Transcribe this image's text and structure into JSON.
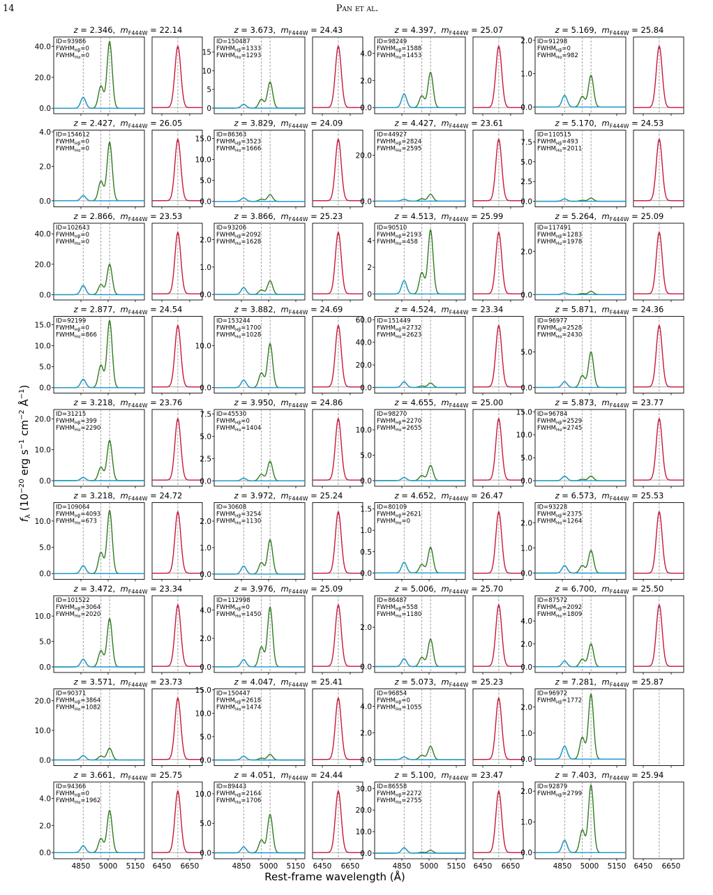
{
  "header": {
    "page": "14",
    "running_head": "Pan et al."
  },
  "figure": {
    "x_label": "Rest-frame wavelength (Å)",
    "y_label": [
      "f",
      "λ",
      " (10",
      "−20",
      " erg s",
      "−1",
      " cm",
      "−2",
      " Å",
      "−1",
      ")"
    ],
    "labels": {
      "z": "z",
      "eq": " = ",
      "sep": ",  ",
      "m": "m",
      "band": "F444W",
      "id": "ID=",
      "fwhm": "FWHM",
      "hb": "Hβ",
      "ha": "Hα",
      "eq2": "="
    },
    "xlim_left": [
      4700,
      5200
    ],
    "xlim_right": [
      6380,
      6740
    ],
    "xticks_left": [
      4850,
      5000,
      5150
    ],
    "xticks_right": [
      6450,
      6650
    ],
    "line_centers": [
      4862.7,
      4960.3,
      5008.2,
      6564.6
    ],
    "line_sigma": [
      14,
      14,
      14,
      21
    ],
    "doublet_ratio": 0.335,
    "colors": {
      "hb": "#1e9bd7",
      "oiii": "#2f7a1f",
      "ha": "#c8163a",
      "baseline": "#9a9a9a"
    },
    "panels": [
      {
        "z": "2.346",
        "m": "22.14",
        "id": "93986",
        "fwhm_hb": "0",
        "fwhm_ha": "0",
        "ylim": [
          -3.5,
          46
        ],
        "yticks": [
          {
            "value": 0,
            "label": "0.0"
          },
          {
            "value": 20,
            "label": "20.0"
          },
          {
            "value": 40,
            "label": "40.0"
          }
        ],
        "hb": 7,
        "oiii": 43,
        "ha": 60
      },
      {
        "z": "3.673",
        "m": "24.43",
        "id": "150487",
        "fwhm_hb": "1333",
        "fwhm_ha": "1293",
        "ylim": [
          -1.5,
          19
        ],
        "yticks": [
          0,
          5,
          10,
          15
        ],
        "hb": 1,
        "oiii": 7,
        "ha": 18
      },
      {
        "z": "4.397",
        "m": "25.07",
        "id": "98249",
        "fwhm_hb": "1588",
        "fwhm_ha": "1453",
        "ylim": [
          -0.45,
          5.2
        ],
        "yticks": [
          {
            "value": 0,
            "label": "0.0"
          },
          {
            "value": 2,
            "label": "2.0"
          },
          {
            "value": 4,
            "label": "4.0"
          }
        ],
        "hb": 1,
        "oiii": 2.6,
        "ha": 8
      },
      {
        "z": "5.169",
        "m": "25.84",
        "id": "91298",
        "fwhm_hb": "0",
        "fwhm_ha": "982",
        "ylim": [
          -0.2,
          2.1
        ],
        "yticks": [
          {
            "value": 0,
            "label": "0.0"
          },
          {
            "value": 1,
            "label": "1.0"
          },
          {
            "value": 2,
            "label": "2.0"
          }
        ],
        "hb": 0.35,
        "oiii": 0.95,
        "ha": 3
      },
      {
        "z": "2.427",
        "m": "26.05",
        "id": "154612",
        "fwhm_hb": "0",
        "fwhm_ha": "0",
        "ylim": [
          -0.35,
          4.1
        ],
        "yticks": [
          {
            "value": 0,
            "label": "0.0"
          },
          {
            "value": 2,
            "label": "2.0"
          },
          {
            "value": 4,
            "label": "4.0"
          }
        ],
        "hb": 0.3,
        "oiii": 3.4,
        "ha": 12
      },
      {
        "z": "3.829",
        "m": "24.09",
        "id": "86363",
        "fwhm_hb": "3523",
        "fwhm_ha": "1666",
        "ylim": [
          -1.3,
          17
        ],
        "yticks": [
          {
            "value": 0,
            "label": "0.0"
          },
          {
            "value": 5,
            "label": "5.0"
          },
          {
            "value": 10,
            "label": "10.0"
          },
          {
            "value": 15,
            "label": "15.0"
          }
        ],
        "hb": 0.8,
        "oiii": 1.6,
        "ha": 45
      },
      {
        "z": "4.427",
        "m": "23.61",
        "id": "44927",
        "fwhm_hb": "2824",
        "fwhm_ha": "2595",
        "ylim": [
          -2.5,
          31
        ],
        "yticks": [
          {
            "value": 0,
            "label": "0.0"
          },
          {
            "value": 20,
            "label": "20.0"
          }
        ],
        "hb": 0.8,
        "oiii": 3,
        "ha": 60
      },
      {
        "z": "5.170",
        "m": "24.53",
        "id": "110515",
        "fwhm_hb": "493",
        "fwhm_ha": "2011",
        "ylim": [
          -0.7,
          9
        ],
        "yticks": [
          {
            "value": 0,
            "label": "0.0"
          },
          {
            "value": 2.5,
            "label": "2.5"
          },
          {
            "value": 5,
            "label": "5.0"
          },
          {
            "value": 7.5,
            "label": "7.5"
          }
        ],
        "hb": 0.3,
        "oiii": 0.4,
        "ha": 25
      },
      {
        "z": "2.866",
        "m": "23.53",
        "id": "102643",
        "fwhm_hb": "0",
        "fwhm_ha": "0",
        "ylim": [
          -3.5,
          47
        ],
        "yticks": [
          {
            "value": 0,
            "label": "0.0"
          },
          {
            "value": 20,
            "label": "20.0"
          },
          {
            "value": 40,
            "label": "40.0"
          }
        ],
        "hb": 6,
        "oiii": 20,
        "ha": 100
      },
      {
        "z": "3.866",
        "m": "25.23",
        "id": "93206",
        "fwhm_hb": "2092",
        "fwhm_ha": "1628",
        "ylim": [
          -0.2,
          2.6
        ],
        "yticks": [
          {
            "value": 0,
            "label": "0.0"
          },
          {
            "value": 1,
            "label": "1.0"
          },
          {
            "value": 2,
            "label": "2.0"
          }
        ],
        "hb": 0.25,
        "oiii": 0.5,
        "ha": 6
      },
      {
        "z": "4.513",
        "m": "25.99",
        "id": "90510",
        "fwhm_hb": "2193",
        "fwhm_ha": "458",
        "ylim": [
          -0.45,
          5.3
        ],
        "yticks": [
          0,
          2,
          4
        ],
        "hb": 1,
        "oiii": 4.8,
        "ha": 12
      },
      {
        "z": "5.264",
        "m": "25.09",
        "id": "117491",
        "fwhm_hb": "1283",
        "fwhm_ha": "1978",
        "ylim": [
          -0.25,
          3.3
        ],
        "yticks": [
          {
            "value": 0,
            "label": "0.0"
          },
          {
            "value": 2,
            "label": "2.0"
          }
        ],
        "hb": 0.08,
        "oiii": 0.15,
        "ha": 6
      },
      {
        "z": "2.877",
        "m": "24.54",
        "id": "92199",
        "fwhm_hb": "0",
        "fwhm_ha": "866",
        "ylim": [
          -1.3,
          17
        ],
        "yticks": [
          {
            "value": 0,
            "label": "0.0"
          },
          {
            "value": 5,
            "label": "5.0"
          },
          {
            "value": 10,
            "label": "10.0"
          },
          {
            "value": 15,
            "label": "15.0"
          }
        ],
        "hb": 2,
        "oiii": 16,
        "ha": 40
      },
      {
        "z": "3.882",
        "m": "24.69",
        "id": "153244",
        "fwhm_hb": "1700",
        "fwhm_ha": "1028",
        "ylim": [
          -1.3,
          17
        ],
        "yticks": [
          {
            "value": 0,
            "label": "0.0"
          },
          {
            "value": 10,
            "label": "10.0"
          }
        ],
        "hb": 1.8,
        "oiii": 10.5,
        "ha": 30
      },
      {
        "z": "4.524",
        "m": "23.34",
        "id": "151449",
        "fwhm_hb": "2732",
        "fwhm_ha": "2623",
        "ylim": [
          -5,
          63
        ],
        "yticks": [
          {
            "value": 0,
            "label": "0.0"
          },
          {
            "value": 20,
            "label": "20.0"
          },
          {
            "value": 40,
            "label": "40.0"
          },
          {
            "value": 60,
            "label": "60.0"
          }
        ],
        "hb": 5,
        "oiii": 4,
        "ha": 150
      },
      {
        "z": "5.871",
        "m": "24.36",
        "id": "96977",
        "fwhm_hb": "2528",
        "fwhm_ha": "2430",
        "ylim": [
          -0.8,
          10
        ],
        "yticks": [
          {
            "value": 0,
            "label": "0.0"
          },
          {
            "value": 5,
            "label": "5.0"
          }
        ],
        "hb": 0.8,
        "oiii": 5,
        "ha": 20
      },
      {
        "z": "3.218",
        "m": "23.76",
        "id": "31215",
        "fwhm_hb": "399",
        "fwhm_ha": "2290",
        "ylim": [
          -1.8,
          23
        ],
        "yticks": [
          {
            "value": 0,
            "label": "0.0"
          },
          {
            "value": 10,
            "label": "10.0"
          },
          {
            "value": 20,
            "label": "20.0"
          }
        ],
        "hb": 1,
        "oiii": 13,
        "ha": 70
      },
      {
        "z": "3.950",
        "m": "24.86",
        "id": "45530",
        "fwhm_hb": "0",
        "fwhm_ha": "1404",
        "ylim": [
          -0.6,
          8
        ],
        "yticks": [
          {
            "value": 0,
            "label": "0.0"
          },
          {
            "value": 2.5,
            "label": "2.5"
          },
          {
            "value": 5,
            "label": "5.0"
          },
          {
            "value": 7.5,
            "label": "7.5"
          }
        ],
        "hb": 0.3,
        "oiii": 2.2,
        "ha": 15
      },
      {
        "z": "4.655",
        "m": "25.00",
        "id": "98270",
        "fwhm_hb": "2270",
        "fwhm_ha": "2655",
        "ylim": [
          -1.1,
          14
        ],
        "yticks": [
          {
            "value": 0,
            "label": "0.0"
          },
          {
            "value": 5,
            "label": "5.0"
          },
          {
            "value": 10,
            "label": "10.0"
          }
        ],
        "hb": 0.6,
        "oiii": 3,
        "ha": 25
      },
      {
        "z": "5.873",
        "m": "23.77",
        "id": "96784",
        "fwhm_hb": "2529",
        "fwhm_ha": "2745",
        "ylim": [
          -1.2,
          15.5
        ],
        "yticks": [
          {
            "value": 0,
            "label": "0.0"
          },
          {
            "value": 5,
            "label": "5.0"
          },
          {
            "value": 10,
            "label": "10.0"
          },
          {
            "value": 15,
            "label": "15.0"
          }
        ],
        "hb": 1,
        "oiii": 1,
        "ha": 30
      },
      {
        "z": "3.218",
        "m": "24.72",
        "id": "109064",
        "fwhm_hb": "4093",
        "fwhm_ha": "673",
        "ylim": [
          -1.1,
          13.5
        ],
        "yticks": [
          {
            "value": 0,
            "label": "0.0"
          },
          {
            "value": 5,
            "label": "5.0"
          },
          {
            "value": 10,
            "label": "10.0"
          }
        ],
        "hb": 1.5,
        "oiii": 12,
        "ha": 30
      },
      {
        "z": "3.972",
        "m": "25.24",
        "id": "30608",
        "fwhm_hb": "3254",
        "fwhm_ha": "1130",
        "ylim": [
          -0.2,
          2.7
        ],
        "yticks": [
          {
            "value": 0,
            "label": "0.0"
          },
          {
            "value": 1,
            "label": "1.0"
          },
          {
            "value": 2,
            "label": "2.0"
          }
        ],
        "hb": 0.3,
        "oiii": 1.3,
        "ha": 8
      },
      {
        "z": "4.652",
        "m": "26.47",
        "id": "80109",
        "fwhm_hb": "2621",
        "fwhm_ha": "0",
        "ylim": [
          -0.15,
          1.65
        ],
        "yticks": [
          {
            "value": 0,
            "label": "0.0"
          },
          {
            "value": 0.5,
            "label": "0.5"
          },
          {
            "value": 1,
            "label": "1.0"
          },
          {
            "value": 1.5,
            "label": "1.5"
          }
        ],
        "hb": 0.25,
        "oiii": 0.6,
        "ha": 1.8
      },
      {
        "z": "6.573",
        "m": "25.53",
        "id": "93228",
        "fwhm_hb": "2375",
        "fwhm_ha": "1264",
        "ylim": [
          -0.25,
          2.8
        ],
        "yticks": [
          {
            "value": 0,
            "label": "0.0"
          },
          {
            "value": 1,
            "label": "1.0"
          },
          {
            "value": 2,
            "label": "2.0"
          }
        ],
        "hb": 0.3,
        "oiii": 0.9,
        "ha": 6
      },
      {
        "z": "3.472",
        "m": "23.34",
        "id": "101522",
        "fwhm_hb": "3064",
        "fwhm_ha": "2020",
        "ylim": [
          -1.1,
          14
        ],
        "yticks": [
          {
            "value": 0,
            "label": "0.0"
          },
          {
            "value": 5,
            "label": "5.0"
          },
          {
            "value": 10,
            "label": "10.0"
          }
        ],
        "hb": 1.5,
        "oiii": 9.5,
        "ha": 40
      },
      {
        "z": "3.976",
        "m": "25.09",
        "id": "112998",
        "fwhm_hb": "0",
        "fwhm_ha": "1450",
        "ylim": [
          -0.4,
          5
        ],
        "yticks": [
          {
            "value": 0,
            "label": "0.0"
          },
          {
            "value": 2,
            "label": "2.0"
          },
          {
            "value": 4,
            "label": "4.0"
          }
        ],
        "hb": 0.5,
        "oiii": 4.2,
        "ha": 15
      },
      {
        "z": "5.006",
        "m": "25.70",
        "id": "86487",
        "fwhm_hb": "558",
        "fwhm_ha": "1180",
        "ylim": [
          -0.3,
          3.6
        ],
        "yticks": [
          {
            "value": 0,
            "label": "0.0"
          },
          {
            "value": 2,
            "label": "2.0"
          }
        ],
        "hb": 0.4,
        "oiii": 1.4,
        "ha": 10
      },
      {
        "z": "6.700",
        "m": "25.50",
        "id": "87572",
        "fwhm_hb": "2092",
        "fwhm_ha": "1809",
        "ylim": [
          -0.5,
          6.2
        ],
        "yticks": [
          {
            "value": 0,
            "label": "0.0"
          },
          {
            "value": 2,
            "label": "2.0"
          },
          {
            "value": 4,
            "label": "4.0"
          }
        ],
        "hb": 0.5,
        "oiii": 2,
        "ha": 12
      },
      {
        "z": "3.571",
        "m": "23.73",
        "id": "90371",
        "fwhm_hb": "3864",
        "fwhm_ha": "1082",
        "ylim": [
          -1.9,
          24
        ],
        "yticks": [
          {
            "value": 0,
            "label": "0.0"
          },
          {
            "value": 10,
            "label": "10.0"
          },
          {
            "value": 20,
            "label": "20.0"
          }
        ],
        "hb": 1.5,
        "oiii": 4,
        "ha": 80
      },
      {
        "z": "4.047",
        "m": "25.41",
        "id": "150447",
        "fwhm_hb": "2618",
        "fwhm_ha": "1474",
        "ylim": [
          -1.2,
          15.2
        ],
        "yticks": [
          {
            "value": 0,
            "label": "0.0"
          },
          {
            "value": 5,
            "label": "5.0"
          },
          {
            "value": 10,
            "label": "10.0"
          },
          {
            "value": 15,
            "label": "15.0"
          }
        ],
        "hb": 0.8,
        "oiii": 1.2,
        "ha": 30
      },
      {
        "z": "5.073",
        "m": "25.23",
        "id": "96854",
        "fwhm_hb": "0",
        "fwhm_ha": "1055",
        "ylim": [
          -0.45,
          5.3
        ],
        "yticks": [
          {
            "value": 0,
            "label": "0.0"
          },
          {
            "value": 2,
            "label": "2.0"
          },
          {
            "value": 4,
            "label": "4.0"
          }
        ],
        "hb": 0.2,
        "oiii": 1,
        "ha": 12
      },
      {
        "z": "7.281",
        "m": "25.87",
        "id": "96972",
        "fwhm_hb": "1772",
        "fwhm_ha": null,
        "ylim": [
          -0.25,
          2.7
        ],
        "yticks": [
          {
            "value": 0,
            "label": "0.0"
          },
          {
            "value": 1,
            "label": "1.0"
          },
          {
            "value": 2,
            "label": "2.0"
          }
        ],
        "hb": 0.5,
        "oiii": 2.5,
        "ha": null
      },
      {
        "z": "3.661",
        "m": "25.75",
        "id": "94366",
        "fwhm_hb": "0",
        "fwhm_ha": "1962",
        "ylim": [
          -0.45,
          5.2
        ],
        "yticks": [
          {
            "value": 0,
            "label": "0.0"
          },
          {
            "value": 2,
            "label": "2.0"
          },
          {
            "value": 4,
            "label": "4.0"
          }
        ],
        "hb": 0.5,
        "oiii": 3.1,
        "ha": 10
      },
      {
        "z": "4.051",
        "m": "24.44",
        "id": "89443",
        "fwhm_hb": "2164",
        "fwhm_ha": "1706",
        "ylim": [
          -1,
          12
        ],
        "yticks": [
          {
            "value": 0,
            "label": "0.0"
          },
          {
            "value": 5,
            "label": "5.0"
          },
          {
            "value": 10,
            "label": "10.0"
          }
        ],
        "hb": 1,
        "oiii": 6.5,
        "ha": 25
      },
      {
        "z": "5.100",
        "m": "23.47",
        "id": "86558",
        "fwhm_hb": "2272",
        "fwhm_ha": "2755",
        "ylim": [
          -2.6,
          33
        ],
        "yticks": [
          {
            "value": 0,
            "label": "0.0"
          },
          {
            "value": 10,
            "label": "10.0"
          },
          {
            "value": 20,
            "label": "20.0"
          },
          {
            "value": 30,
            "label": "30.0"
          }
        ],
        "hb": 2.5,
        "oiii": 1.3,
        "ha": 60
      },
      {
        "z": "7.403",
        "m": "25.94",
        "id": "92879",
        "fwhm_hb": "2799",
        "fwhm_ha": null,
        "ylim": [
          -0.2,
          2.3
        ],
        "yticks": [
          {
            "value": 0,
            "label": "0.0"
          },
          {
            "value": 1,
            "label": "1.0"
          },
          {
            "value": 2,
            "label": "2.0"
          }
        ],
        "hb": 0.4,
        "oiii": 2.2,
        "ha": null
      }
    ]
  }
}
